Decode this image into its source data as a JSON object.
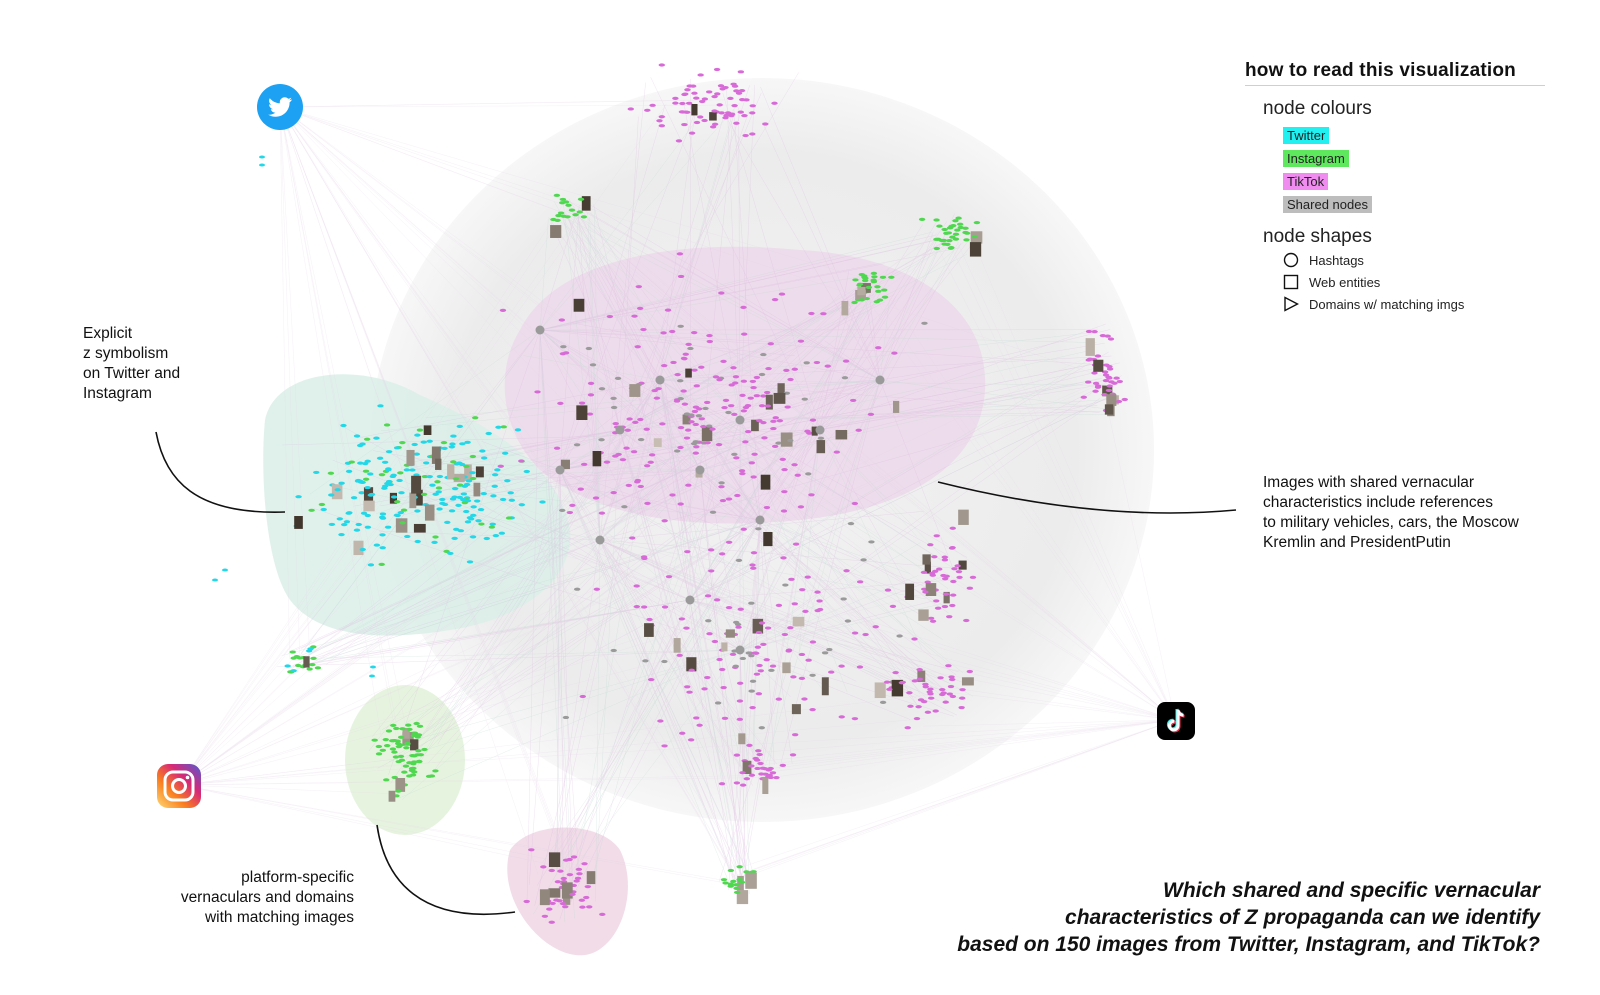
{
  "legend": {
    "title": "how to read this visualization",
    "colours_heading": "node colours",
    "colours": [
      {
        "label": "Twitter",
        "color": "#22f0f0"
      },
      {
        "label": "Instagram",
        "color": "#5ee85e"
      },
      {
        "label": "TikTok",
        "color": "#f08cf0"
      },
      {
        "label": "Shared nodes",
        "color": "#bdbdbd"
      }
    ],
    "shapes_heading": "node shapes",
    "shapes": [
      {
        "label": "Hashtags",
        "shape": "circle-icon"
      },
      {
        "label": "Web entities",
        "shape": "square-icon"
      },
      {
        "label": "Domains w/ matching imgs",
        "shape": "triangle-icon"
      }
    ]
  },
  "annotations": {
    "explicit": [
      "Explicit",
      "z symbolism",
      "on Twitter and",
      "Instagram"
    ],
    "shared": [
      "Images with shared vernacular",
      "characteristics include references",
      "to military vehicles, cars, the Moscow",
      "Kremlin and PresidentPutin"
    ],
    "platform": [
      "platform-specific",
      "vernaculars and domains",
      "with matching images"
    ]
  },
  "question": [
    "Which shared and specific vernacular",
    "characteristics of Z propaganda can we identify",
    "based on 150 images from Twitter, Instagram, and TikTok?"
  ],
  "icons": {
    "twitter": "twitter-icon",
    "instagram": "instagram-icon",
    "tiktok": "tiktok-icon"
  },
  "colors": {
    "twitter": "#22d8e8",
    "instagram": "#4fd84f",
    "tiktok": "#d86ad8",
    "shared": "#9a9a9a",
    "twitter_cluster": "#dcefe9",
    "tiktok_cluster": "#eed8ec"
  }
}
